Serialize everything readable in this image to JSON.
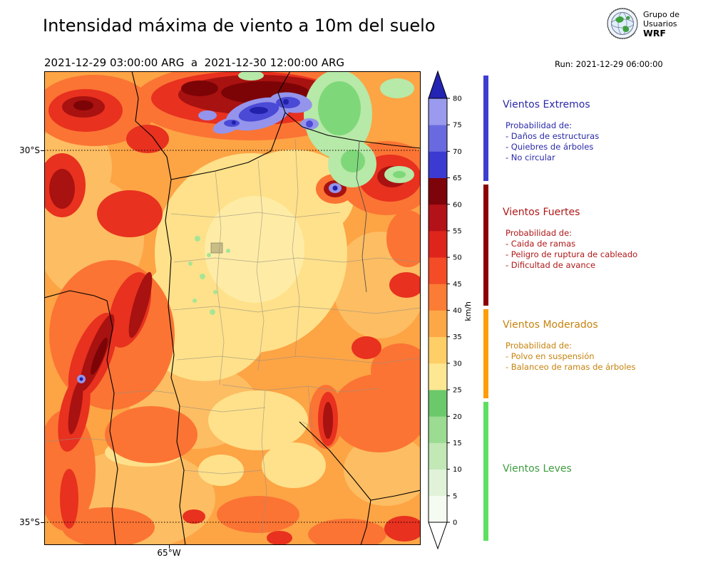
{
  "header": {
    "title": "Intensidad máxima de viento a 10m del suelo",
    "valid_range": "2021-12-29 03:00:00 ARG  a  2021-12-30 12:00:00 ARG",
    "run_label": "Run: 2021-12-29 06:00:00",
    "logo": {
      "line1": "Grupo de",
      "line2": "Usuarios",
      "line3": "WRF"
    }
  },
  "map": {
    "lat_label_30": "30°S",
    "lat_label_35": "35°S",
    "lon_label": "65°W"
  },
  "colorbar": {
    "unit": "km/h",
    "tick_values": [
      0,
      5,
      10,
      15,
      20,
      25,
      30,
      35,
      40,
      45,
      50,
      55,
      60,
      65,
      70,
      75,
      80
    ],
    "segment_colors_bottom_to_top": [
      "#f6fbf2",
      "#e0f3d9",
      "#c2e8b6",
      "#9cdb92",
      "#6bc96b",
      "#fee793",
      "#fecf66",
      "#fda847",
      "#fb7c34",
      "#f34c26",
      "#de251c",
      "#b31218",
      "#7c040a",
      "#3b3bd1",
      "#6a6ae0",
      "#9a9aee"
    ],
    "over_color": "#2323b4",
    "under_color": "#ffffff"
  },
  "legend": {
    "sections": [
      {
        "title": "Vientos Extremos",
        "text_color": "#2a2aa8",
        "bar_color": "#3d3dd1",
        "prob_label": "Probabilidad de:",
        "items": [
          "- Daños de estructuras",
          "- Quiebres de árboles",
          "- No circular"
        ]
      },
      {
        "title": "Vientos Fuertes",
        "text_color": "#b01818",
        "bar_color": "#8b0000",
        "prob_label": "Probabilidad de:",
        "items": [
          "- Caida de ramas",
          "- Peligro de ruptura de cableado",
          "- Dificultad de avance"
        ]
      },
      {
        "title": "Vientos Moderados",
        "text_color": "#c6830e",
        "bar_color": "#ff9d05",
        "prob_label": "Probabilidad de:",
        "items": [
          "- Polvo en suspensión",
          "- Balanceo de ramas de árboles"
        ]
      },
      {
        "title": "Vientos Leves",
        "text_color": "#3f9c3f",
        "bar_color": "#5fdf5f",
        "prob_label": "",
        "items": []
      }
    ]
  }
}
